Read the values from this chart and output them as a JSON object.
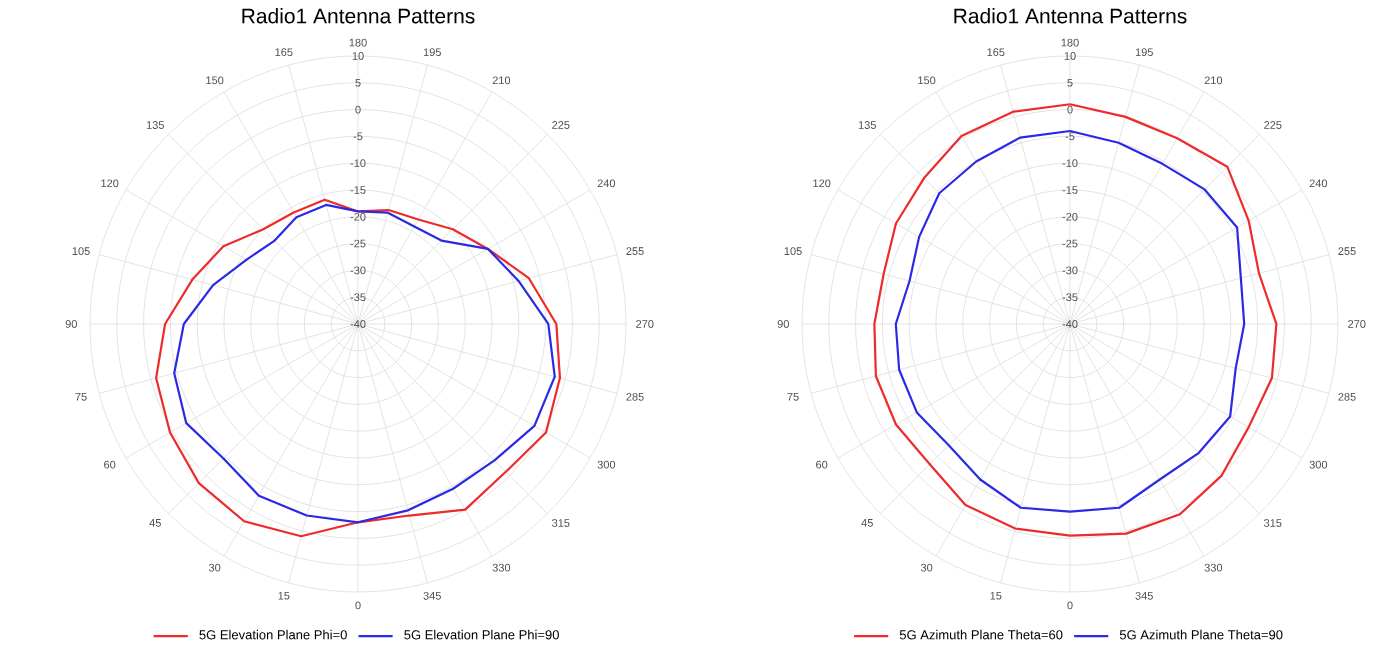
{
  "chart_data": [
    {
      "type": "radar",
      "title": "Radio1 Antenna Patterns",
      "categories": [
        "180",
        "195",
        "210",
        "225",
        "240",
        "255",
        "270",
        "285",
        "300",
        "315",
        "330",
        "345",
        "0",
        "15",
        "30",
        "45",
        "60",
        "75",
        "90",
        "105",
        "120",
        "135",
        "150",
        "165"
      ],
      "series": [
        {
          "name": "5G Elevation Plane Phi=0",
          "color": "#ee2a2a",
          "values": [
            -19,
            -18,
            -17.5,
            -15,
            -12,
            -7,
            -3,
            -1,
            0.5,
            -1,
            0,
            -3,
            -3,
            1,
            2.5,
            2,
            0.5,
            -1,
            -4,
            -8,
            -11,
            -15,
            -16,
            -16
          ]
        },
        {
          "name": "5G Elevation Plane Phi=90",
          "color": "#2a2ae6",
          "values": [
            -19,
            -18.5,
            -19,
            -18,
            -12,
            -9,
            -4.5,
            -2,
            -2,
            -4,
            -4.5,
            -4,
            -3,
            -3,
            -3,
            -4.5,
            -3,
            -4.5,
            -7.5,
            -12,
            -16,
            -18,
            -17,
            -17
          ]
        }
      ],
      "ylim": [
        -40,
        10
      ],
      "yticks": [
        -40,
        -35,
        -30,
        -25,
        -20,
        -15,
        -10,
        -5,
        0,
        5,
        10
      ],
      "grid": true,
      "legend": "bottom"
    },
    {
      "type": "radar",
      "title": "Radio1 Antenna Patterns",
      "categories": [
        "180",
        "195",
        "210",
        "225",
        "240",
        "255",
        "270",
        "285",
        "300",
        "315",
        "330",
        "345",
        "0",
        "15",
        "30",
        "45",
        "60",
        "75",
        "90",
        "105",
        "120",
        "135",
        "150",
        "165"
      ],
      "series": [
        {
          "name": "5G Azimuth Plane Theta=60",
          "color": "#ee2a2a",
          "values": [
            1,
            0,
            0,
            1.5,
            -1.5,
            -3.5,
            -1.5,
            -1,
            -1.5,
            0,
            1,
            0.5,
            -0.5,
            -0.5,
            -1,
            -3,
            -2.5,
            -2.5,
            -3.5,
            -4,
            -2.5,
            -1.5,
            0.5,
            1
          ]
        },
        {
          "name": "5G Azimuth Plane Theta=90",
          "color": "#2a2ae6",
          "values": [
            -4,
            -5,
            -5.5,
            -4.5,
            -4,
            -7,
            -7.5,
            -8,
            -5.5,
            -6,
            -6.5,
            -4.5,
            -5,
            -4.5,
            -6.5,
            -8,
            -7,
            -7,
            -7.5,
            -9,
            -7.5,
            -5.5,
            -5,
            -4
          ]
        }
      ],
      "ylim": [
        -40,
        10
      ],
      "yticks": [
        -40,
        -35,
        -30,
        -25,
        -20,
        -15,
        -10,
        -5,
        0,
        5,
        10
      ],
      "grid": true,
      "legend": "bottom"
    }
  ]
}
